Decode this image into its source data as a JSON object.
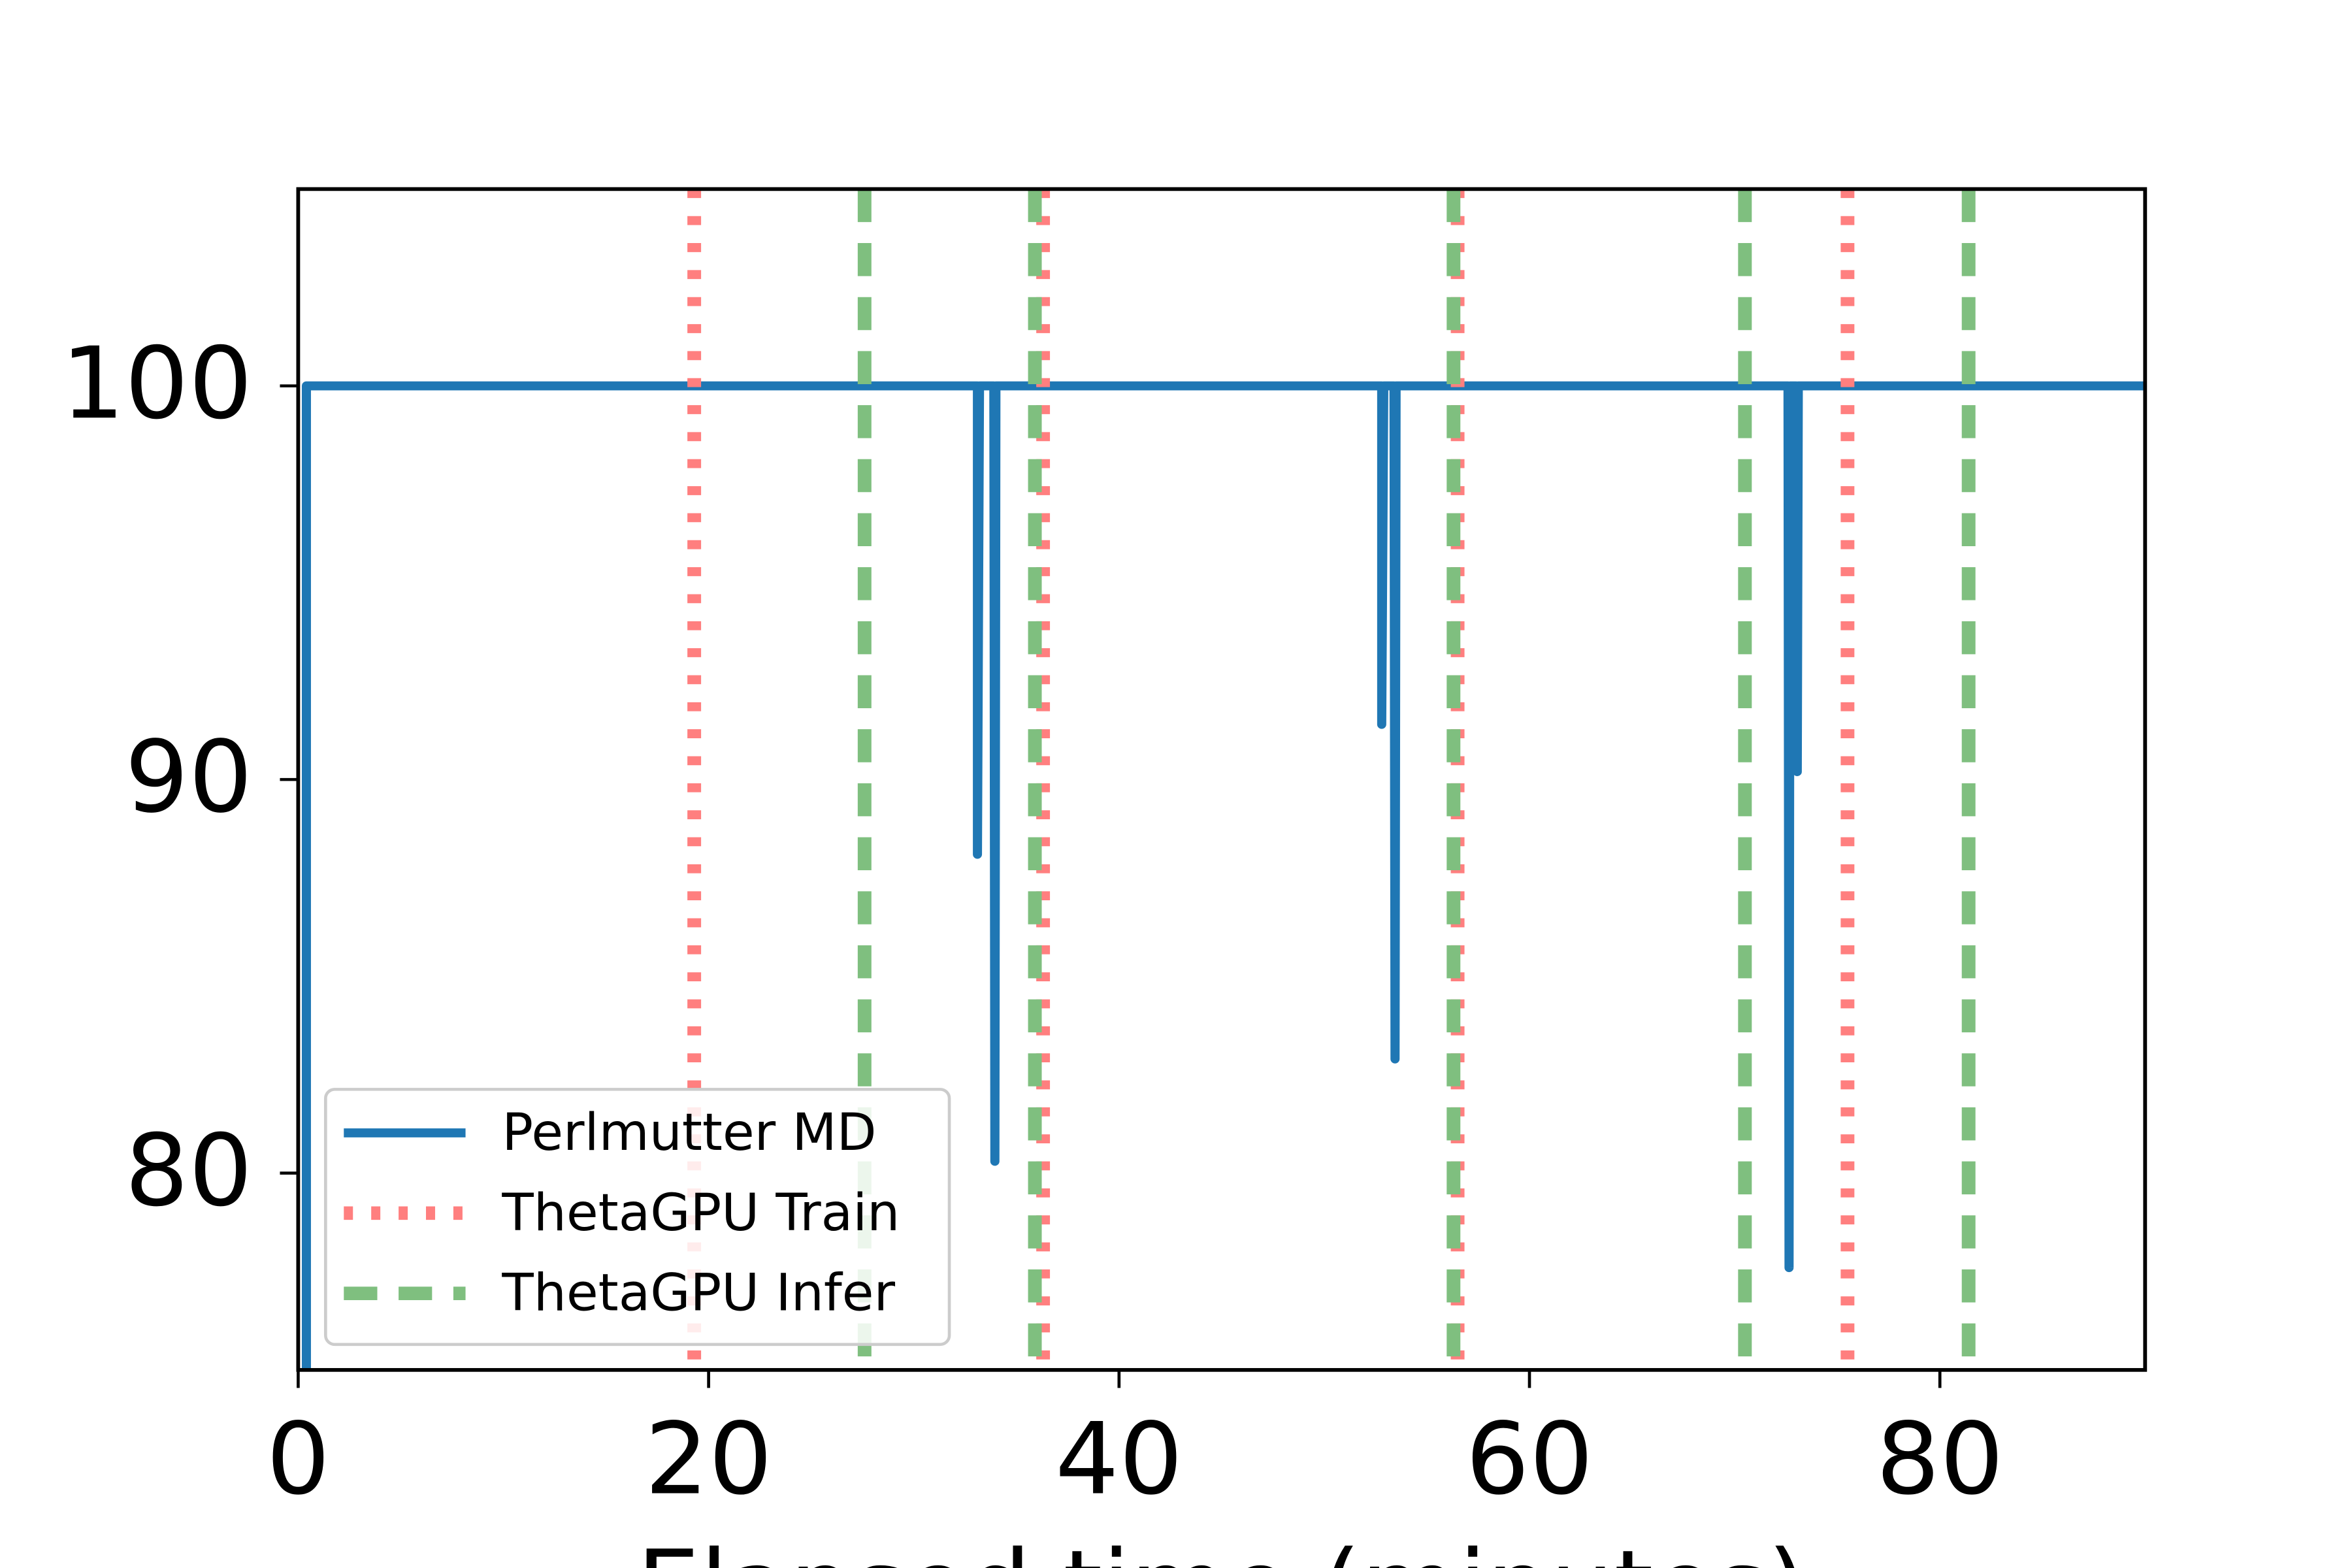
{
  "chart_data": {
    "type": "line",
    "xlabel": "Elapsed time (minutes)",
    "xlim": [
      0,
      90
    ],
    "xticks": [
      0,
      20,
      40,
      60,
      80
    ],
    "ylim": [
      75,
      105
    ],
    "yticks": [
      80,
      90,
      100
    ],
    "legend": "lower left",
    "series": [
      {
        "name": "Perlmutter MD",
        "color": "#1f77b4",
        "style": "solid",
        "x": [
          0.4,
          0.4,
          33.1,
          33.1,
          33.2,
          33.9,
          33.95,
          34.0,
          52.8,
          52.8,
          52.9,
          53.4,
          53.45,
          53.5,
          72.6,
          72.65,
          72.7,
          73.0,
          73.05,
          73.1,
          90
        ],
        "values": [
          75,
          100,
          100,
          88.1,
          100,
          100,
          80.3,
          100,
          100,
          91.4,
          100,
          100,
          82.9,
          100,
          100,
          77.6,
          100,
          100,
          90.2,
          100,
          100
        ]
      },
      {
        "name": "ThetaGPU Train",
        "color": "#ff7f7f",
        "style": "dotted",
        "vlines": [
          19.3,
          36.3,
          56.5,
          75.5
        ]
      },
      {
        "name": "ThetaGPU Infer",
        "color": "#7fbf7f",
        "style": "dashed",
        "vlines": [
          27.6,
          35.9,
          56.3,
          70.5,
          81.4
        ]
      }
    ]
  }
}
